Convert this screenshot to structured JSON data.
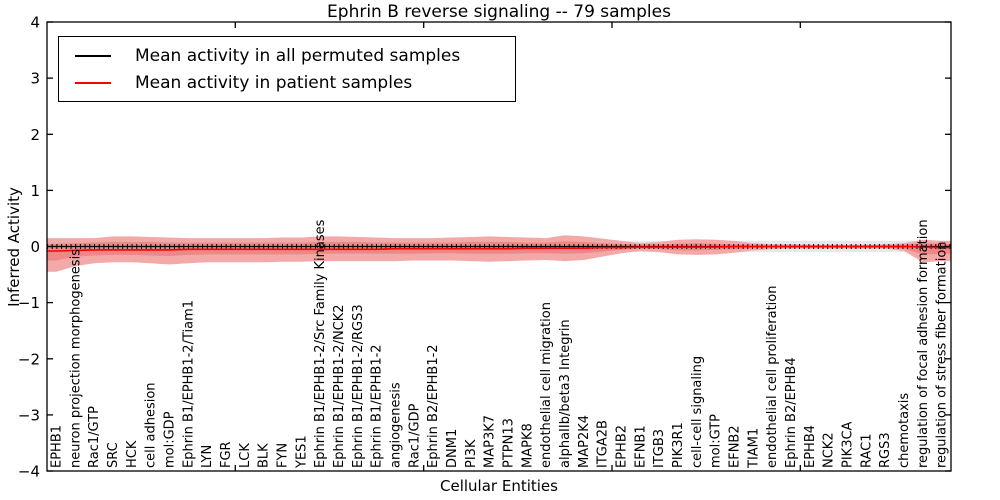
{
  "chart_data": {
    "type": "line",
    "title": "Ephrin B reverse signaling -- 79 samples",
    "xlabel": "Cellular Entities",
    "ylabel": "Inferred Activity",
    "ylim": [
      -4,
      4
    ],
    "yticks": [
      -4,
      -3,
      -2,
      -1,
      0,
      1,
      2,
      3,
      4
    ],
    "grid": false,
    "legend_position": "upper left",
    "categories": [
      "EPHB1",
      "neuron projection morphogenesis",
      "Rac1/GTP",
      "SRC",
      "HCK",
      "cell adhesion",
      "mol:GDP",
      "Ephrin B1/EPHB1-2/Tiam1",
      "LYN",
      "FGR",
      "LCK",
      "BLK",
      "FYN",
      "YES1",
      "Ephrin B1/EPHB1-2/Src Family Kinases",
      "Ephrin B1/EPHB1-2/NCK2",
      "Ephrin B1/EPHB1-2/RGS3",
      "Ephrin B1/EPHB1-2",
      "angiogenesis",
      "Rac1/GDP",
      "Ephrin B2/EPHB1-2",
      "DNM1",
      "PI3K",
      "MAP3K7",
      "PTPN13",
      "MAPK8",
      "endothelial cell migration",
      "alphaIIb/beta3 Integrin",
      "MAP2K4",
      "ITGA2B",
      "EPHB2",
      "EFNB1",
      "ITGB3",
      "PIK3R1",
      "cell-cell signaling",
      "mol:GTP",
      "EFNB2",
      "TIAM1",
      "endothelial cell proliferation",
      "Ephrin B2/EPHB4",
      "EPHB4",
      "NCK2",
      "PIK3CA",
      "RAC1",
      "RGS3",
      "chemotaxis",
      "regulation of focal adhesion formation",
      "regulation of stress fiber formation"
    ],
    "series": [
      {
        "name": "Mean activity in all permuted samples",
        "color": "#000000",
        "band_color": "#e8e8e8",
        "band_halfwidth": 0.1,
        "values": [
          0,
          0,
          0,
          0,
          0,
          0,
          0,
          0,
          0,
          0,
          0,
          0,
          0,
          0,
          0,
          0,
          0,
          0,
          0,
          0,
          0,
          0,
          0,
          0,
          0,
          0,
          0,
          0,
          0,
          0,
          0,
          0,
          0,
          0,
          0,
          0,
          0,
          0,
          0,
          0,
          0,
          0,
          0,
          0,
          0,
          0,
          0,
          0
        ]
      },
      {
        "name": "Mean activity in patient samples",
        "color": "#ff0000",
        "outer_band_color": "#f4a9a9",
        "inner_band_color": "#ee8787",
        "values": [
          -0.08,
          -0.07,
          -0.06,
          -0.06,
          -0.06,
          -0.06,
          -0.06,
          -0.05,
          -0.05,
          -0.05,
          -0.05,
          -0.05,
          -0.05,
          -0.05,
          -0.05,
          -0.05,
          -0.05,
          -0.05,
          -0.04,
          -0.04,
          -0.04,
          -0.04,
          -0.04,
          -0.04,
          -0.04,
          -0.03,
          -0.03,
          -0.03,
          -0.03,
          -0.02,
          -0.02,
          -0.01,
          -0.01,
          -0.01,
          -0.01,
          -0.01,
          0,
          0,
          0,
          0,
          0,
          0,
          0,
          0,
          0,
          0,
          -0.01,
          -0.02
        ],
        "outer_upper": [
          0.15,
          0.15,
          0.15,
          0.18,
          0.18,
          0.17,
          0.16,
          0.15,
          0.15,
          0.15,
          0.15,
          0.15,
          0.16,
          0.16,
          0.18,
          0.18,
          0.17,
          0.16,
          0.15,
          0.15,
          0.15,
          0.16,
          0.17,
          0.18,
          0.17,
          0.16,
          0.15,
          0.2,
          0.18,
          0.14,
          0.1,
          0.06,
          0.08,
          0.12,
          0.13,
          0.12,
          0.1,
          0.06,
          0.04,
          0.04,
          0.03,
          0.03,
          0.03,
          0.03,
          0.04,
          0.06,
          0.12,
          0.1
        ],
        "outer_lower": [
          -0.45,
          -0.35,
          -0.3,
          -0.28,
          -0.28,
          -0.3,
          -0.32,
          -0.3,
          -0.28,
          -0.28,
          -0.28,
          -0.28,
          -0.27,
          -0.27,
          -0.26,
          -0.26,
          -0.26,
          -0.26,
          -0.26,
          -0.25,
          -0.25,
          -0.25,
          -0.26,
          -0.27,
          -0.26,
          -0.25,
          -0.24,
          -0.26,
          -0.24,
          -0.18,
          -0.12,
          -0.08,
          -0.1,
          -0.14,
          -0.15,
          -0.14,
          -0.11,
          -0.07,
          -0.05,
          -0.04,
          -0.04,
          -0.04,
          -0.04,
          -0.04,
          -0.04,
          -0.08,
          -0.28,
          -0.26
        ],
        "inner_upper": [
          0.05,
          0.06,
          0.07,
          0.08,
          0.08,
          0.08,
          0.07,
          0.07,
          0.07,
          0.07,
          0.07,
          0.07,
          0.07,
          0.07,
          0.08,
          0.08,
          0.08,
          0.07,
          0.07,
          0.07,
          0.07,
          0.07,
          0.08,
          0.08,
          0.08,
          0.07,
          0.07,
          0.09,
          0.08,
          0.06,
          0.05,
          0.03,
          0.04,
          0.05,
          0.06,
          0.05,
          0.04,
          0.03,
          0.02,
          0.02,
          0.02,
          0.02,
          0.02,
          0.02,
          0.02,
          0.03,
          0.06,
          0.05
        ],
        "inner_lower": [
          -0.25,
          -0.18,
          -0.16,
          -0.15,
          -0.15,
          -0.16,
          -0.17,
          -0.15,
          -0.14,
          -0.14,
          -0.14,
          -0.14,
          -0.14,
          -0.14,
          -0.13,
          -0.13,
          -0.13,
          -0.13,
          -0.13,
          -0.13,
          -0.12,
          -0.12,
          -0.13,
          -0.13,
          -0.13,
          -0.12,
          -0.12,
          -0.13,
          -0.12,
          -0.09,
          -0.06,
          -0.04,
          -0.05,
          -0.07,
          -0.07,
          -0.06,
          -0.05,
          -0.03,
          -0.02,
          -0.02,
          -0.02,
          -0.02,
          -0.02,
          -0.02,
          -0.02,
          -0.04,
          -0.14,
          -0.13
        ]
      }
    ]
  }
}
